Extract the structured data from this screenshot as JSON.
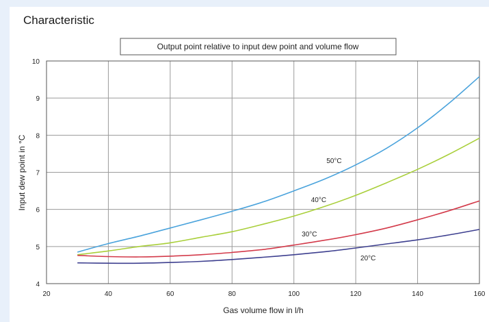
{
  "heading": "Characteristic",
  "chart_data": {
    "type": "line",
    "title": "Output point relative to input dew point and volume flow",
    "xlabel": "Gas volume flow in l/h",
    "ylabel": "Input dew point in °C",
    "xlim": [
      20,
      160
    ],
    "ylim": [
      4,
      10
    ],
    "xticks": [
      20,
      40,
      60,
      80,
      100,
      120,
      140,
      160
    ],
    "yticks": [
      4,
      5,
      6,
      7,
      8,
      9,
      10
    ],
    "grid": true,
    "series": [
      {
        "name": "50°C",
        "color": "#4aa3dc",
        "x": [
          30,
          40,
          50,
          60,
          70,
          80,
          90,
          100,
          110,
          120,
          130,
          140,
          150,
          160
        ],
        "y": [
          4.85,
          5.08,
          5.28,
          5.5,
          5.72,
          5.95,
          6.2,
          6.5,
          6.82,
          7.2,
          7.65,
          8.2,
          8.85,
          9.58
        ]
      },
      {
        "name": "40°C",
        "color": "#a9cf3a",
        "x": [
          30,
          40,
          50,
          60,
          70,
          80,
          90,
          100,
          110,
          120,
          130,
          140,
          150,
          160
        ],
        "y": [
          4.78,
          4.88,
          5.0,
          5.1,
          5.25,
          5.4,
          5.6,
          5.82,
          6.08,
          6.38,
          6.72,
          7.08,
          7.48,
          7.92
        ]
      },
      {
        "name": "30°C",
        "color": "#d33a4a",
        "x": [
          30,
          40,
          50,
          60,
          70,
          80,
          90,
          100,
          110,
          120,
          130,
          140,
          150,
          160
        ],
        "y": [
          4.76,
          4.73,
          4.72,
          4.74,
          4.78,
          4.84,
          4.92,
          5.04,
          5.17,
          5.32,
          5.5,
          5.72,
          5.96,
          6.23
        ]
      },
      {
        "name": "20°C",
        "color": "#3d3f8f",
        "x": [
          30,
          40,
          50,
          60,
          70,
          80,
          90,
          100,
          110,
          120,
          130,
          140,
          150,
          160
        ],
        "y": [
          4.56,
          4.55,
          4.55,
          4.57,
          4.6,
          4.65,
          4.71,
          4.78,
          4.86,
          4.96,
          5.07,
          5.18,
          5.31,
          5.46
        ]
      }
    ],
    "series_labels": [
      {
        "text": "50°C",
        "x": 113,
        "y": 7.32
      },
      {
        "text": "40°C",
        "x": 108,
        "y": 6.27
      },
      {
        "text": "30°C",
        "x": 105,
        "y": 5.35
      },
      {
        "text": "20°C",
        "x": 124,
        "y": 4.7
      }
    ]
  }
}
